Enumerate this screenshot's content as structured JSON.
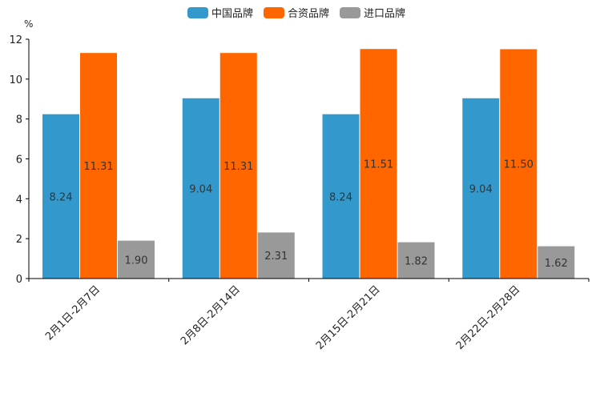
{
  "chart_data": {
    "type": "bar",
    "title": "",
    "ylabel": "%",
    "xlabel": "",
    "ylim": [
      0,
      12
    ],
    "yticks": [
      0,
      2,
      4,
      6,
      8,
      10,
      12
    ],
    "grid": false,
    "legend_position": "top-center",
    "categories": [
      "2月1日-2月7日",
      "2月8日-2月14日",
      "2月15日-2月21日",
      "2月22日-2月28日"
    ],
    "series": [
      {
        "name": "中国品牌",
        "color": "#3399cc",
        "values": [
          8.24,
          9.04,
          8.24,
          9.04
        ],
        "labels": [
          "8.24",
          "9.04",
          "8.24",
          "9.04"
        ]
      },
      {
        "name": "合资品牌",
        "color": "#ff6600",
        "values": [
          11.31,
          11.31,
          11.51,
          11.5
        ],
        "labels": [
          "11.31",
          "11.31",
          "11.51",
          "11.50"
        ]
      },
      {
        "name": "进口品牌",
        "color": "#999999",
        "values": [
          1.9,
          2.31,
          1.82,
          1.62
        ],
        "labels": [
          "1.90",
          "2.31",
          "1.82",
          "1.62"
        ]
      }
    ]
  }
}
